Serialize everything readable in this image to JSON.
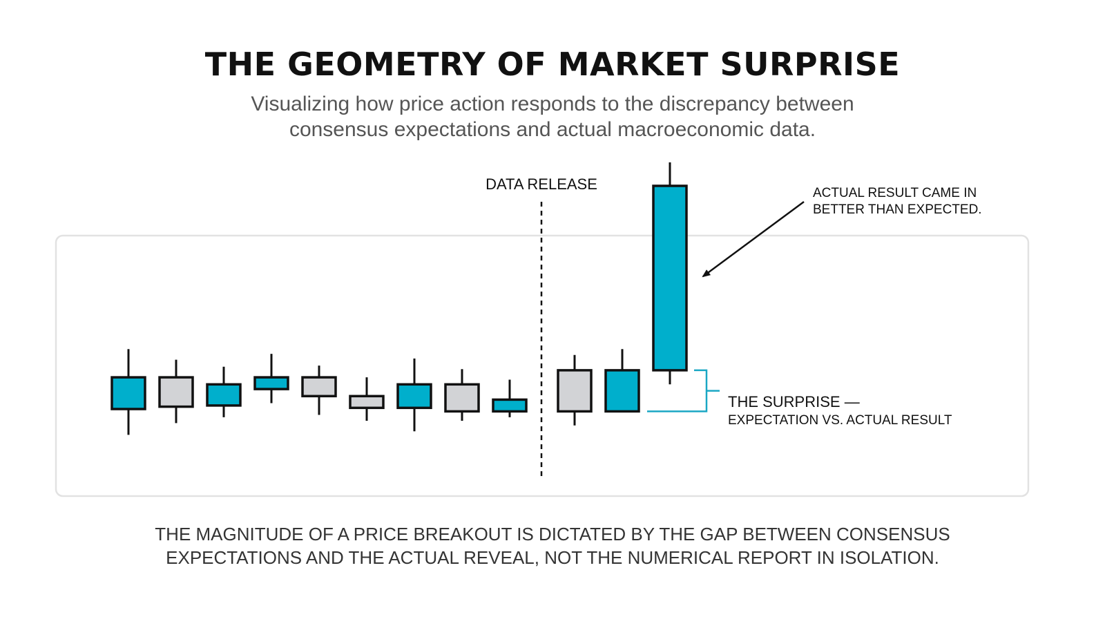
{
  "title": "THE GEOMETRY OF MARKET SURPRISE",
  "subtitle": {
    "line1": "Visualizing how price action responds to the discrepancy between",
    "line2": "consensus expectations and actual macroeconomic data."
  },
  "annotations": {
    "data_release": "DATA RELEASE",
    "actual_result_line1": "ACTUAL RESULT CAME IN",
    "actual_result_line2": "BETTER THAN EXPECTED.",
    "surprise_line1": "THE SURPRISE —",
    "surprise_line2": "EXPECTATION VS. ACTUAL RESULT"
  },
  "footer": {
    "line1": "THE MAGNITUDE OF A PRICE BREAKOUT IS DICTATED BY THE GAP BETWEEN CONSENSUS",
    "line2": "EXPECTATIONS AND THE ACTUAL REVEAL, NOT THE NUMERICAL REPORT IN ISOLATION."
  },
  "colors": {
    "bullish": "#00afcc",
    "neutral": "#d2d3d6",
    "outline": "#111111",
    "bracket": "#1aa7c4",
    "panel_border": "#e2e2e2"
  },
  "chart_data": {
    "type": "candlestick",
    "release_after_index": 8,
    "candles": [
      {
        "high": 9.6,
        "low": 2.3,
        "body_top": 7.2,
        "body_bottom": 4.5,
        "color": "bullish"
      },
      {
        "high": 8.7,
        "low": 3.3,
        "body_top": 7.2,
        "body_bottom": 4.7,
        "color": "neutral"
      },
      {
        "high": 8.1,
        "low": 3.8,
        "body_top": 6.6,
        "body_bottom": 4.8,
        "color": "bullish"
      },
      {
        "high": 9.2,
        "low": 5.0,
        "body_top": 7.2,
        "body_bottom": 6.2,
        "color": "bullish"
      },
      {
        "high": 8.2,
        "low": 4.0,
        "body_top": 7.2,
        "body_bottom": 5.6,
        "color": "neutral"
      },
      {
        "high": 7.2,
        "low": 3.5,
        "body_top": 5.6,
        "body_bottom": 4.6,
        "color": "neutral"
      },
      {
        "high": 8.8,
        "low": 2.6,
        "body_top": 6.6,
        "body_bottom": 4.6,
        "color": "bullish"
      },
      {
        "high": 7.9,
        "low": 3.5,
        "body_top": 6.6,
        "body_bottom": 4.3,
        "color": "neutral"
      },
      {
        "high": 7.0,
        "low": 3.8,
        "body_top": 5.3,
        "body_bottom": 4.3,
        "color": "bullish"
      },
      {
        "high": 9.1,
        "low": 3.1,
        "body_top": 7.8,
        "body_bottom": 4.3,
        "color": "neutral"
      },
      {
        "high": 9.6,
        "low": 4.3,
        "body_top": 7.8,
        "body_bottom": 4.3,
        "color": "bullish"
      },
      {
        "high": 25.5,
        "low": 6.6,
        "body_top": 23.5,
        "body_bottom": 7.8,
        "color": "bullish"
      }
    ],
    "surprise": {
      "expected": 4.3,
      "actual": 7.8
    }
  }
}
